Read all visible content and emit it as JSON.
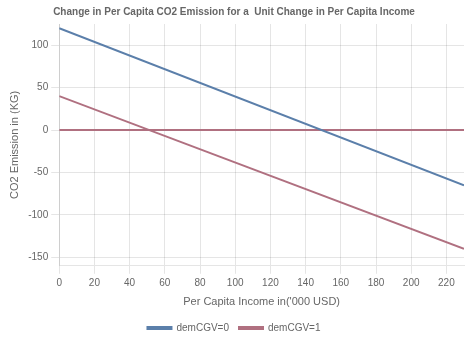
{
  "chart_data": {
    "type": "line",
    "title": "Change in Per Capita CO2 Emission for a  Unit Change in Per Capita Income",
    "x_label": "Per Capita Income in('000 USD)",
    "y_label": "CO2 Emission in (KG)",
    "x": [
      0,
      230
    ],
    "series": [
      {
        "name": "demCGV=0",
        "color": "#5b7faa",
        "values": [
          120,
          -65
        ]
      },
      {
        "name": "demCGV=1",
        "color": "#b07080",
        "values": [
          40,
          -140
        ]
      }
    ],
    "hlines": [
      {
        "value": 0,
        "color": "#b07080"
      }
    ],
    "xlim": [
      0,
      230
    ],
    "ylim": [
      -160,
      125
    ],
    "xticks": [
      0,
      20,
      40,
      60,
      80,
      100,
      120,
      140,
      160,
      180,
      200,
      220
    ],
    "yticks": [
      -150,
      -100,
      -50,
      0,
      50,
      100
    ],
    "grid": true,
    "legend": "bottom"
  }
}
